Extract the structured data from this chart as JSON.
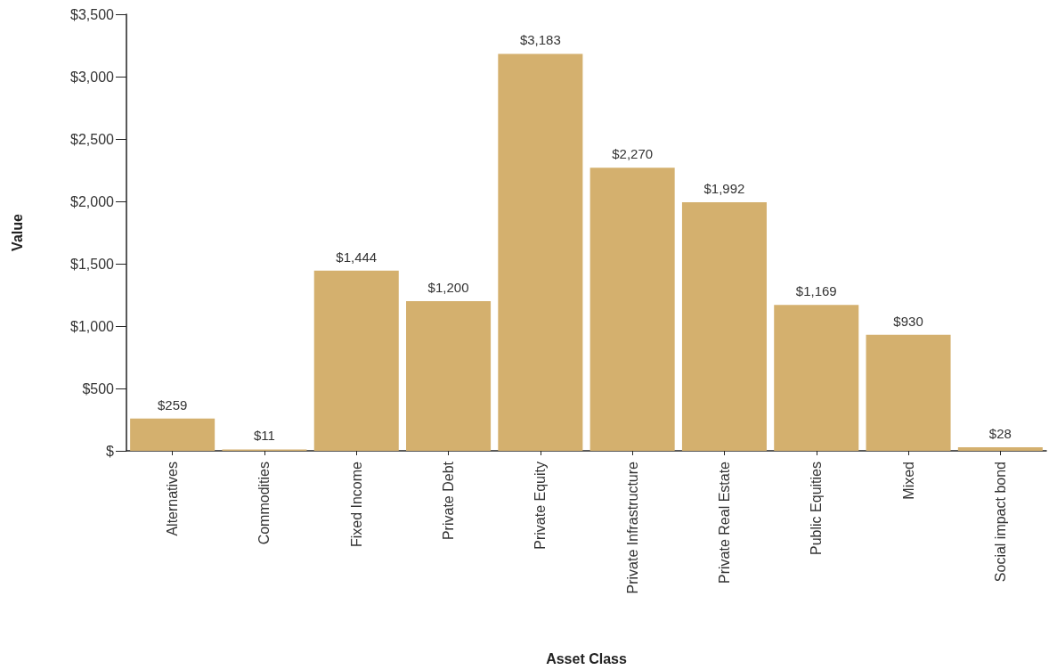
{
  "chart_data": {
    "type": "bar",
    "xlabel": "Asset Class",
    "ylabel": "Value",
    "categories": [
      "Alternatives",
      "Commodities",
      "Fixed Income",
      "Private Debt",
      "Private Equity",
      "Private Infrastructure",
      "Private Real Estate",
      "Public Equities",
      "Mixed",
      "Social impact bond"
    ],
    "values": [
      259,
      11,
      1444,
      1200,
      3183,
      2270,
      1992,
      1169,
      930,
      28
    ],
    "value_labels": [
      "$259",
      "$11",
      "$1,444",
      "$1,200",
      "$3,183",
      "$2,270",
      "$1,992",
      "$1,169",
      "$930",
      "$28"
    ],
    "color": "#d4b06e",
    "ylim": [
      0,
      3500
    ],
    "yticks": [
      {
        "value": 0,
        "label": "$"
      },
      {
        "value": 500,
        "label": "$500"
      },
      {
        "value": 1000,
        "label": "$1,000"
      },
      {
        "value": 1500,
        "label": "$1,500"
      },
      {
        "value": 2000,
        "label": "$2,000"
      },
      {
        "value": 2500,
        "label": "$2,500"
      },
      {
        "value": 3000,
        "label": "$3,000"
      },
      {
        "value": 3500,
        "label": "$3,500"
      }
    ],
    "grid": false
  }
}
